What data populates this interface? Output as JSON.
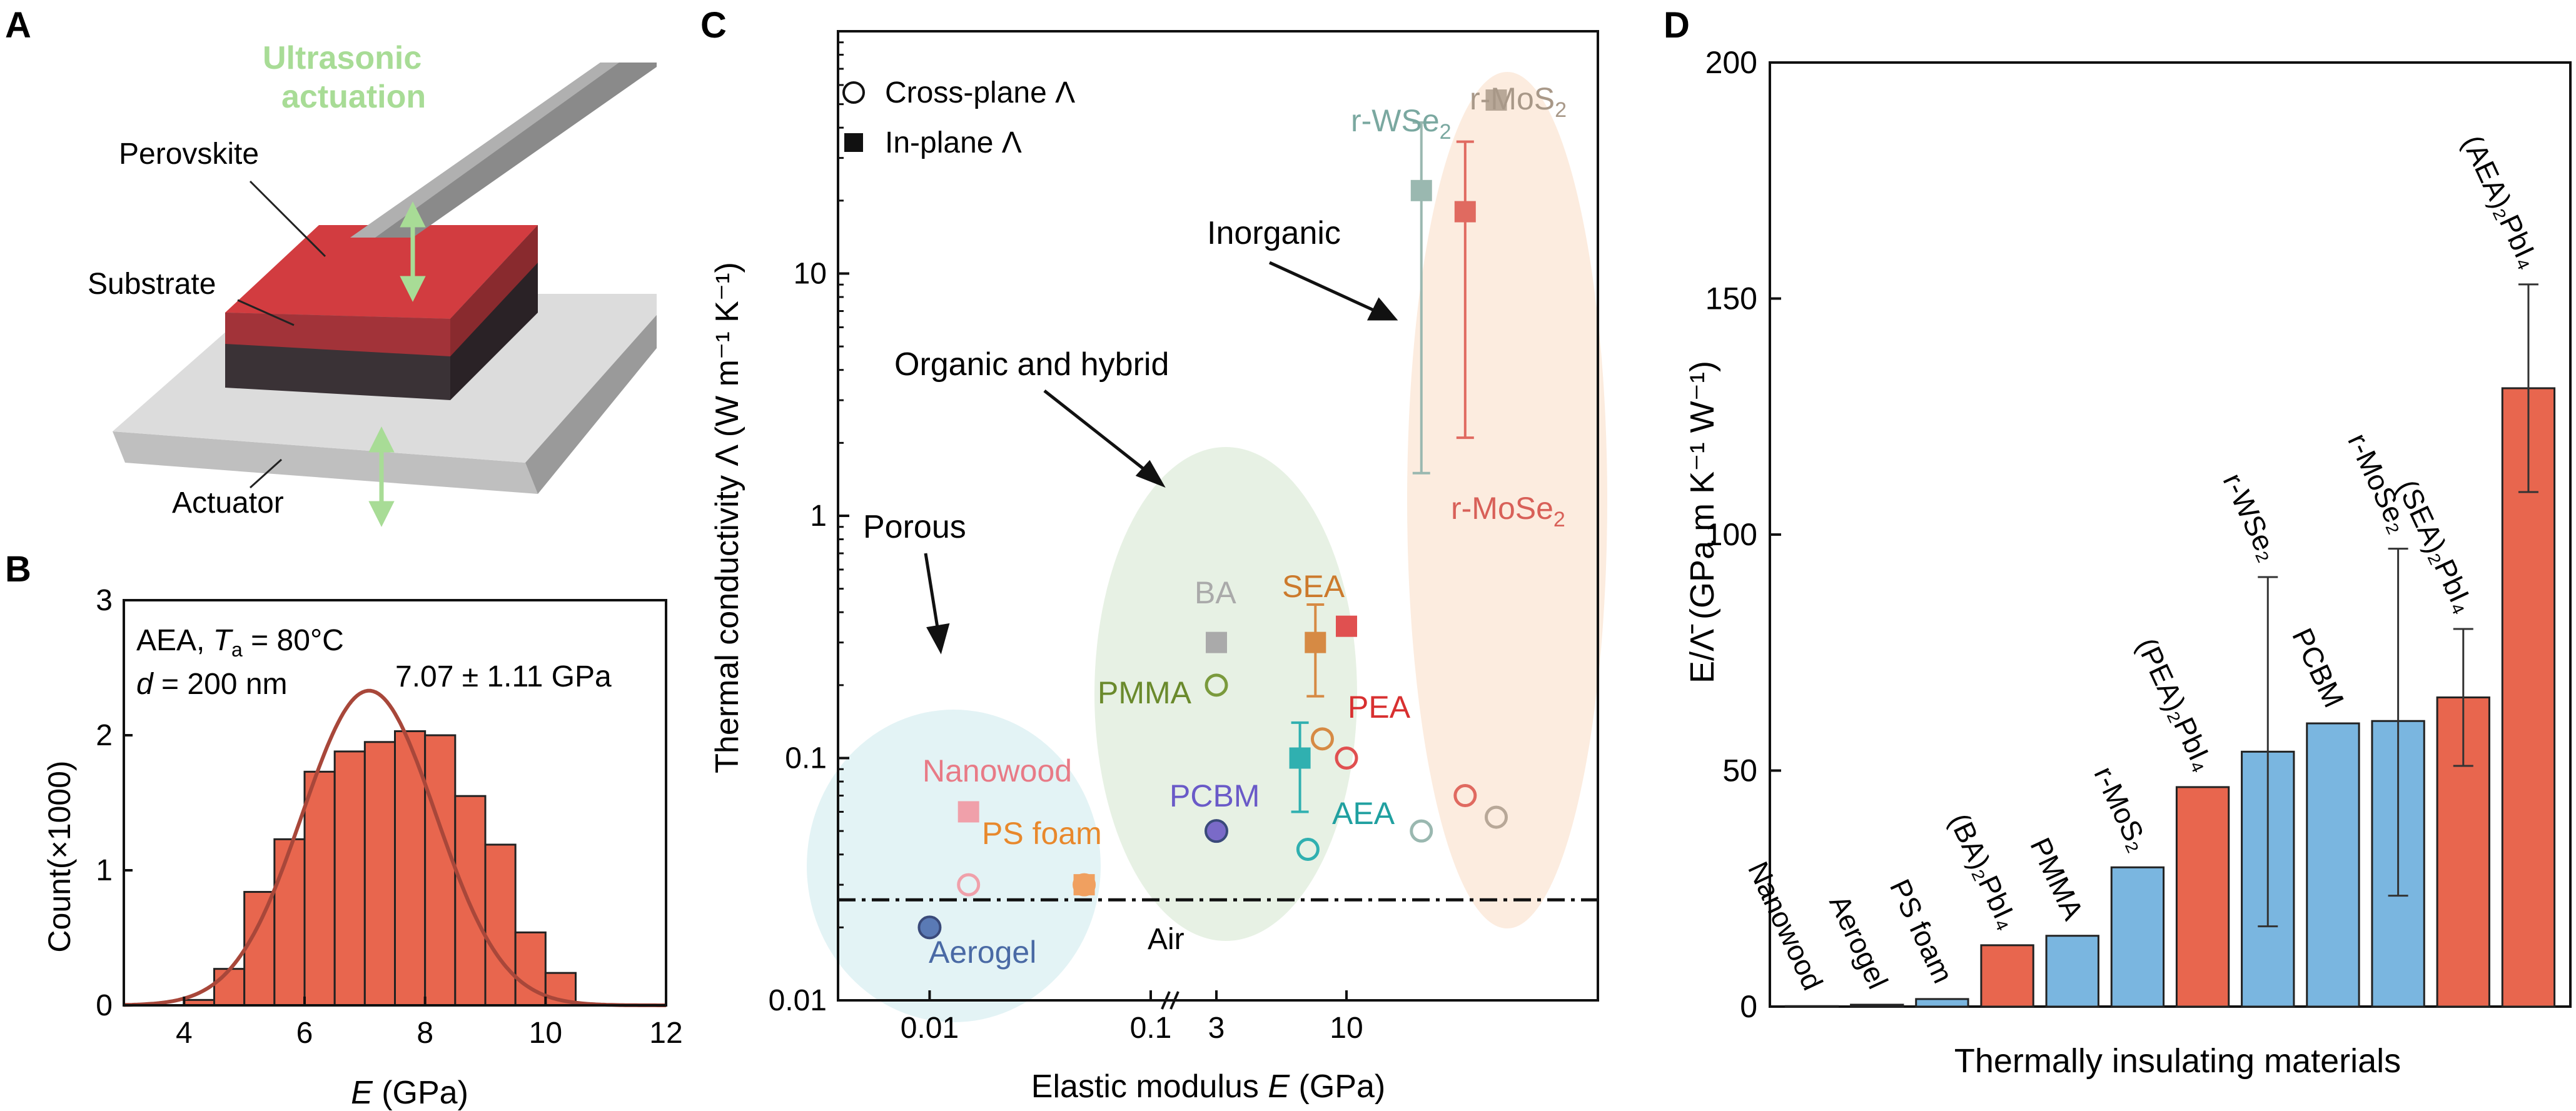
{
  "panels": {
    "a": {
      "letter": "A",
      "labels": {
        "ultrasonic_1": "Ultrasonic",
        "ultrasonic_2": "actuation",
        "perovskite": "Perovskite",
        "substrate": "Substrate",
        "actuator": "Actuator"
      },
      "colors": {
        "accent": "#a8dc96",
        "perovskite": "#c8383c"
      }
    },
    "b": {
      "letter": "B",
      "annotation_1": "AEA, ",
      "annotation_1_ta": "T",
      "annotation_1_sub": "a",
      "annotation_1_rest": " = 80°C",
      "annotation_2_d": "d",
      "annotation_2_rest": " = 200 nm",
      "fit": "7.07 ± 1.11 GPa",
      "ylabel": "Count(×1000)",
      "xlabel_var": "E",
      "xlabel_unit": " (GPa)"
    },
    "c": {
      "letter": "C",
      "legend_cross": "Cross-plane Λ",
      "legend_in": "In-plane Λ",
      "ylabel": "Thermal conductivity Λ (W m⁻¹ K⁻¹)",
      "xlabel_pre": "Elastic modulus ",
      "xlabel_var": "E",
      "xlabel_unit": " (GPa)",
      "group_porous": "Porous",
      "group_organic": "Organic and hybrid",
      "group_inorganic": "Inorganic",
      "air": "Air"
    },
    "d": {
      "letter": "D",
      "ylabel": "E/Λ̄ (GPa m K⁻¹ W⁻¹)",
      "xlabel": "Thermally insulating materials"
    }
  },
  "chart_data": [
    {
      "panel": "B",
      "type": "bar",
      "xlabel": "E (GPa)",
      "ylabel": "Count(×1000)",
      "xlim": [
        3,
        12
      ],
      "ylim": [
        0,
        3
      ],
      "xticks": [
        4,
        6,
        8,
        10,
        12
      ],
      "yticks": [
        0,
        1,
        2,
        3
      ],
      "bin_edges": [
        4.0,
        4.5,
        5.0,
        5.5,
        6.0,
        6.5,
        7.0,
        7.5,
        8.0,
        8.5,
        9.0,
        9.5,
        10.0,
        10.5
      ],
      "values": [
        0.04,
        0.27,
        0.84,
        1.23,
        1.73,
        1.88,
        1.95,
        2.03,
        2.0,
        1.55,
        1.19,
        0.54,
        0.24,
        0.04
      ],
      "fit_curve": {
        "mean": 7.07,
        "std": 1.11,
        "peak": 2.33
      },
      "colors": {
        "bars": "#e8664e",
        "edge": "#222222",
        "curve": "#a8473a"
      }
    },
    {
      "panel": "C",
      "type": "scatter",
      "xlabel": "Elastic modulus E (GPa)",
      "ylabel": "Thermal conductivity Λ (W m⁻¹ K⁻¹)",
      "yscale": "log",
      "ylim": [
        0.01,
        100
      ],
      "yticks": [
        "0.01",
        "0.1",
        "1",
        "10"
      ],
      "xticks": [
        "0.01",
        "0.1",
        "3",
        "10"
      ],
      "x_axis_break": true,
      "air_line": 0.026,
      "points": [
        {
          "label": "Nanowood",
          "x": 0.015,
          "y": 0.06,
          "marker": "square",
          "color": "#f0a0aa"
        },
        {
          "label": "",
          "x": 0.015,
          "y": 0.03,
          "marker": "circle",
          "color": "#f0a0aa"
        },
        {
          "label": "PS foam",
          "x": 0.05,
          "y": 0.03,
          "marker": "square",
          "color": "#f0a060"
        },
        {
          "label": "",
          "x": 0.05,
          "y": 0.03,
          "marker": "circle",
          "color": "#f0a060"
        },
        {
          "label": "Aerogel",
          "x": 0.01,
          "y": 0.02,
          "marker": "filled-circle",
          "color": "#5a7ab5"
        },
        {
          "label": "BA",
          "x": 3,
          "y": 0.3,
          "marker": "square",
          "color": "#aaaaaa"
        },
        {
          "label": "PMMA",
          "x": 3,
          "y": 0.2,
          "marker": "circle",
          "color": "#7a9a3c"
        },
        {
          "label": "PCBM",
          "x": 3,
          "y": 0.05,
          "marker": "filled-circle",
          "color": "#7a6ac8"
        },
        {
          "label": "SEA",
          "x": 7.5,
          "y": 0.3,
          "y_err": [
            0.18,
            0.43
          ],
          "marker": "square",
          "color": "#d68a44"
        },
        {
          "label": "",
          "x": 8,
          "y": 0.12,
          "marker": "circle",
          "color": "#d68a44"
        },
        {
          "label": "PEA",
          "x": 10,
          "y": 0.35,
          "marker": "square",
          "color": "#e05050"
        },
        {
          "label": "",
          "x": 10,
          "y": 0.1,
          "marker": "circle",
          "color": "#e05050"
        },
        {
          "label": "AEA",
          "x": 6.5,
          "y": 0.1,
          "y_err": [
            0.06,
            0.14
          ],
          "marker": "square",
          "color": "#30b0b0"
        },
        {
          "label": "",
          "x": 7,
          "y": 0.042,
          "marker": "circle",
          "color": "#30b0b0"
        },
        {
          "label": "r-WSe2",
          "x": 20,
          "y": 22,
          "y_err": [
            1.5,
            42
          ],
          "marker": "square",
          "color": "#9ab8b0"
        },
        {
          "label": "",
          "x": 20,
          "y": 0.05,
          "marker": "circle",
          "color": "#9ab8b0"
        },
        {
          "label": "r-MoS2",
          "x": 40,
          "y": 52,
          "marker": "square",
          "color": "#b8a898"
        },
        {
          "label": "",
          "x": 40,
          "y": 0.057,
          "marker": "circle",
          "color": "#b8a898"
        },
        {
          "label": "r-MoSe2",
          "x": 30,
          "y": 18,
          "y_err": [
            2.1,
            35
          ],
          "marker": "square",
          "color": "#e06a60"
        },
        {
          "label": "",
          "x": 30,
          "y": 0.07,
          "marker": "circle",
          "color": "#e06a60"
        }
      ],
      "legend": [
        "Cross-plane Λ",
        "In-plane Λ"
      ],
      "legend_position": "top-left"
    },
    {
      "panel": "D",
      "type": "bar",
      "xlabel": "Thermally insulating materials",
      "ylabel": "E/Λ̄ (GPa m K⁻¹ W⁻¹)",
      "ylim": [
        0,
        200
      ],
      "yticks": [
        0,
        50,
        100,
        150,
        200
      ],
      "categories": [
        "Nanowood",
        "Aerogel",
        "PS foam",
        "(BA)₂PbI₄",
        "PMMA",
        "r-MoS₂",
        "(PEA)₂PbI₄",
        "r-WSe₂",
        "PCBM",
        "r-MoSe₂",
        "(SEA)₂PbI₄",
        "(AEA)₂PbI₄"
      ],
      "values": [
        0.1,
        0.4,
        1.6,
        13,
        15,
        29.5,
        46.5,
        54,
        60,
        60.5,
        65.5,
        131
      ],
      "errors": [
        null,
        null,
        null,
        null,
        null,
        null,
        null,
        [
          17,
          91
        ],
        null,
        [
          23.5,
          97
        ],
        [
          51,
          80
        ],
        [
          109,
          153
        ]
      ],
      "bar_colors": [
        "#7ab6e0",
        "#7ab6e0",
        "#7ab6e0",
        "#e8664e",
        "#7ab6e0",
        "#7ab6e0",
        "#e8664e",
        "#7ab6e0",
        "#7ab6e0",
        "#7ab6e0",
        "#e8664e",
        "#e8664e"
      ]
    }
  ]
}
